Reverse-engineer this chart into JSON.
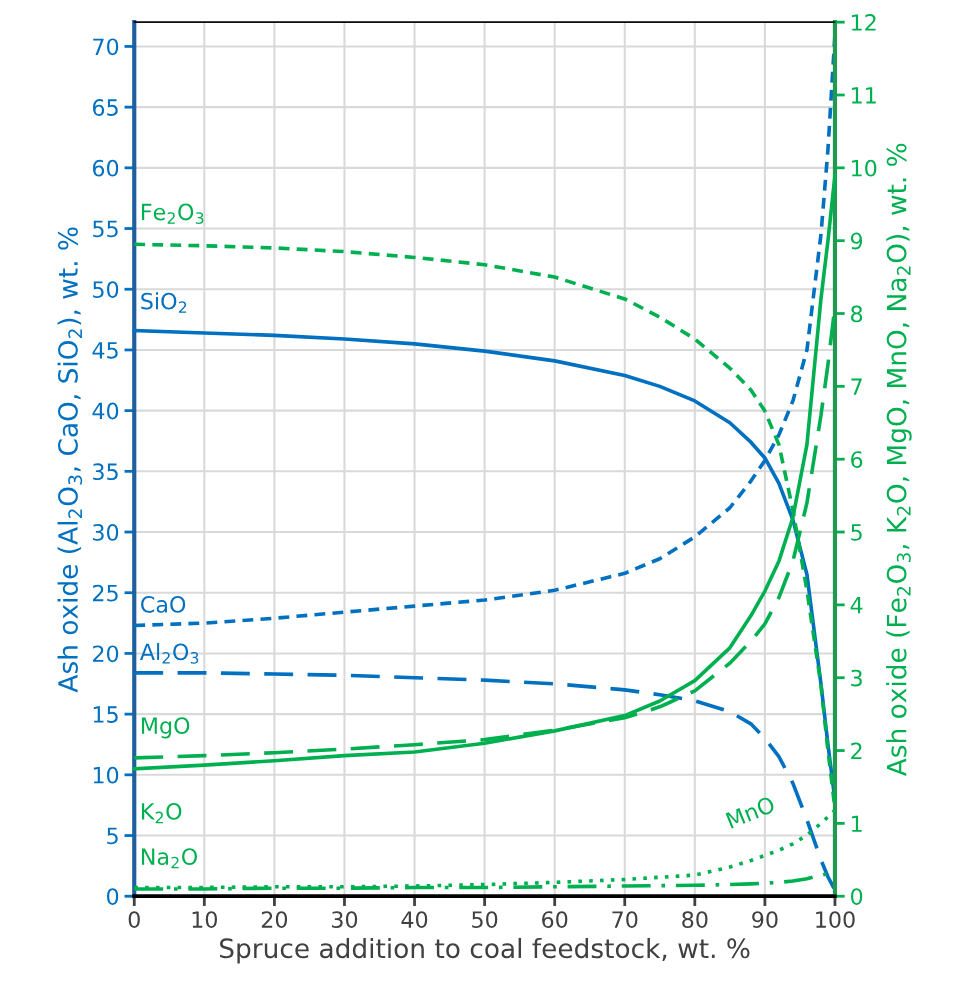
{
  "chart_data": {
    "type": "line",
    "xlabel": "Spruce addition to coal feedstock, wt. %",
    "ylabel": "Ash oxide (Al$_{2}$O$_{3}$, CaO, SiO$_{2}$), wt. %",
    "y2label": "Ash oxide (Fe$_{2}$O$_{3}$, K$_{2}$O, MgO, MnO, Na$_{2}$O), wt. %",
    "x": [
      0,
      10,
      20,
      30,
      40,
      50,
      60,
      70,
      75,
      80,
      85,
      88,
      90,
      92,
      94,
      96,
      98,
      99,
      100
    ],
    "series": [
      {
        "name": "SiO$_{2}$",
        "color": "#0070c0",
        "line_style": "solid",
        "axis": "y",
        "values": [
          46.6,
          46.4,
          46.2,
          45.9,
          45.5,
          44.9,
          44.1,
          42.9,
          42.0,
          40.8,
          39.0,
          37.4,
          36.1,
          34.0,
          31.0,
          26.5,
          17.5,
          12.5,
          7.9
        ]
      },
      {
        "name": "CaO",
        "color": "#0070c0",
        "line_style": "dashed",
        "axis": "y",
        "values": [
          22.3,
          22.5,
          22.9,
          23.4,
          23.9,
          24.4,
          25.2,
          26.6,
          27.8,
          29.6,
          32.0,
          34.2,
          35.9,
          38.0,
          40.8,
          45.0,
          54.5,
          61.5,
          71.0
        ]
      },
      {
        "name": "Al$_{2}$O$_{3}$",
        "color": "#0070c0",
        "line_style": "long_dashed",
        "axis": "y",
        "values": [
          18.4,
          18.4,
          18.3,
          18.2,
          18.0,
          17.8,
          17.5,
          17.0,
          16.6,
          16.1,
          15.2,
          14.2,
          13.0,
          11.5,
          9.3,
          6.3,
          3.0,
          1.6,
          0.5
        ]
      },
      {
        "name": "Fe$_{2}$O$_{3}$",
        "color": "#00b050",
        "line_style": "dashed",
        "axis": "y2",
        "values": [
          8.95,
          8.93,
          8.9,
          8.85,
          8.77,
          8.67,
          8.5,
          8.2,
          7.95,
          7.65,
          7.25,
          6.95,
          6.66,
          6.2,
          5.3,
          4.2,
          2.9,
          2.0,
          1.2
        ]
      },
      {
        "name": "MgO",
        "color": "#00b050",
        "line_style": "long_dashed",
        "axis": "y2",
        "values": [
          1.9,
          1.93,
          1.97,
          2.02,
          2.08,
          2.15,
          2.28,
          2.45,
          2.6,
          2.82,
          3.2,
          3.5,
          3.74,
          4.1,
          4.6,
          5.4,
          6.6,
          7.3,
          8.1
        ]
      },
      {
        "name": "K$_{2}$O",
        "color": "#00b050",
        "line_style": "solid",
        "axis": "y2",
        "values": [
          1.75,
          1.8,
          1.86,
          1.93,
          1.98,
          2.1,
          2.27,
          2.48,
          2.68,
          2.96,
          3.41,
          3.85,
          4.19,
          4.6,
          5.2,
          6.2,
          8.2,
          9.0,
          9.9
        ]
      },
      {
        "name": "Na$_{2}$O",
        "color": "#00b050",
        "line_style": "dash_dot",
        "axis": "y2",
        "values": [
          0.1,
          0.1,
          0.11,
          0.11,
          0.12,
          0.12,
          0.13,
          0.14,
          0.145,
          0.15,
          0.16,
          0.17,
          0.18,
          0.19,
          0.21,
          0.24,
          0.29,
          0.31,
          0.33
        ]
      },
      {
        "name": "MnO",
        "color": "#00b050",
        "line_style": "dotted",
        "axis": "y2",
        "values": [
          0.12,
          0.12,
          0.13,
          0.13,
          0.14,
          0.16,
          0.19,
          0.23,
          0.26,
          0.29,
          0.4,
          0.49,
          0.56,
          0.63,
          0.72,
          0.84,
          1.0,
          1.09,
          1.18
        ]
      }
    ],
    "xlim": [
      0,
      100
    ],
    "xticks": [
      0,
      10,
      20,
      30,
      40,
      50,
      60,
      70,
      80,
      90,
      100
    ],
    "ylim": [
      0,
      72
    ],
    "yticks": [
      0,
      5,
      10,
      15,
      20,
      25,
      30,
      35,
      40,
      45,
      50,
      55,
      60,
      65,
      70
    ],
    "y2lim": [
      0,
      12
    ],
    "y2ticks": [
      0,
      1,
      2,
      3,
      4,
      5,
      6,
      7,
      8,
      9,
      10,
      11,
      12
    ],
    "grid": true
  }
}
